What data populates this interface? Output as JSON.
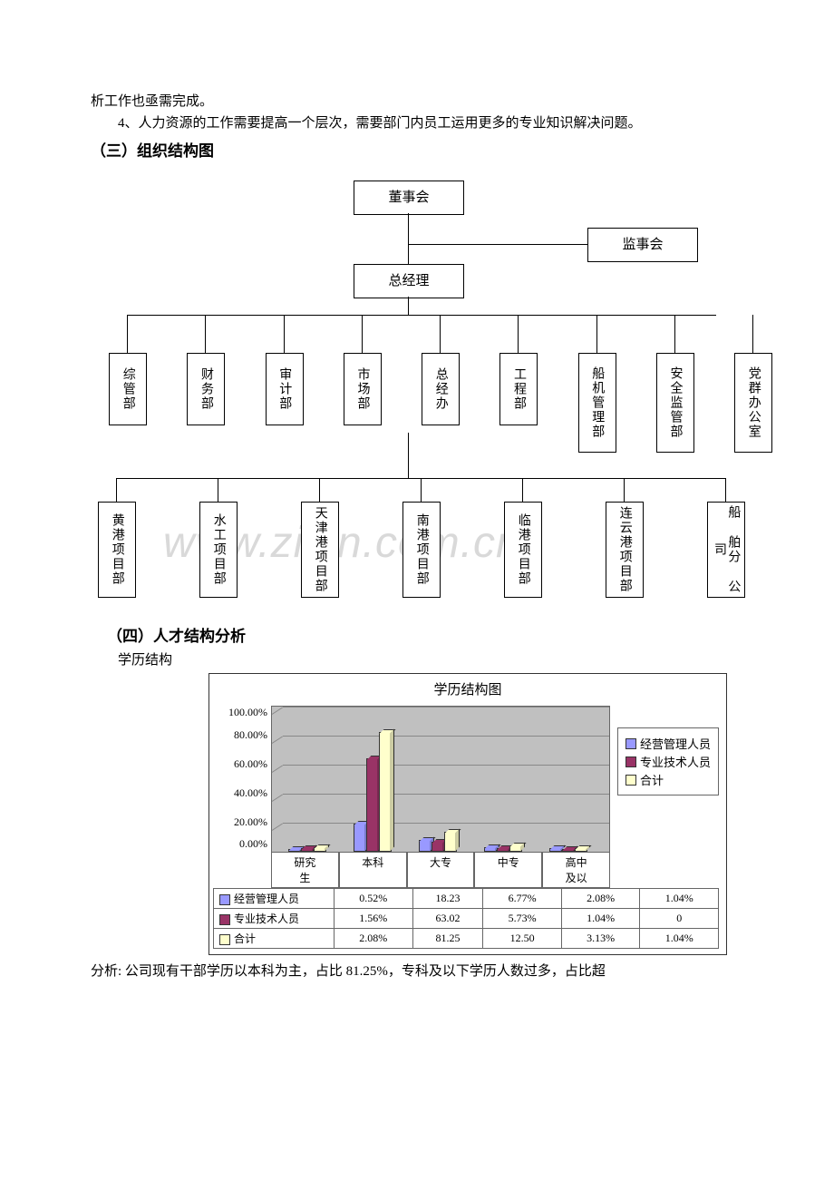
{
  "text": {
    "l1": "析工作也亟需完成。",
    "l2": "4、人力资源的工作需要提高一个层次，需要部门内员工运用更多的专业知识解决问题。",
    "h3": "（三）组织结构图",
    "h4": "（四）人才结构分析",
    "sub4": "学历结构",
    "footer": "分析: 公司现有干部学历以本科为主，占比 81.25%，专科及以下学历人数过多，占比超"
  },
  "org": {
    "top": "董事会",
    "sup": "监事会",
    "gm": "总经理",
    "row1": [
      "综管部",
      "财务部",
      "审计部",
      "市场部",
      "总经办",
      "工程部",
      "船机管理部",
      "安全监管部",
      "党群办公室"
    ],
    "row2": [
      "黄港项目部",
      "水工项目部",
      "天津港项目部",
      "南港项目部",
      "临港项目部",
      "连云港项目部",
      "船 舶分 公司"
    ]
  },
  "chart": {
    "title": "学历结构图",
    "categories": [
      "研究生",
      "本科",
      "大专",
      "中专",
      "高中及以"
    ],
    "series": [
      {
        "name": "经营管理人员",
        "color": "#9999ff",
        "values": [
          0.52,
          18.23,
          6.77,
          2.08,
          1.04
        ],
        "disp": [
          "0.52%",
          "18.23",
          "6.77%",
          "2.08%",
          "1.04%"
        ]
      },
      {
        "name": "专业技术人员",
        "color": "#993366",
        "values": [
          1.56,
          63.02,
          5.73,
          1.04,
          0
        ],
        "disp": [
          "1.56%",
          "63.02",
          "5.73%",
          "1.04%",
          "0"
        ]
      },
      {
        "name": "合计",
        "color": "#ffffcc",
        "values": [
          2.08,
          81.25,
          12.5,
          3.13,
          1.04
        ],
        "disp": [
          "2.08%",
          "81.25",
          "12.50",
          "3.13%",
          "1.04%"
        ]
      }
    ],
    "yticks": [
      "0.00%",
      "20.00%",
      "40.00%",
      "60.00%",
      "80.00%",
      "100.00%"
    ],
    "ymax": 100
  },
  "watermark": "www.zikin.com.cn"
}
